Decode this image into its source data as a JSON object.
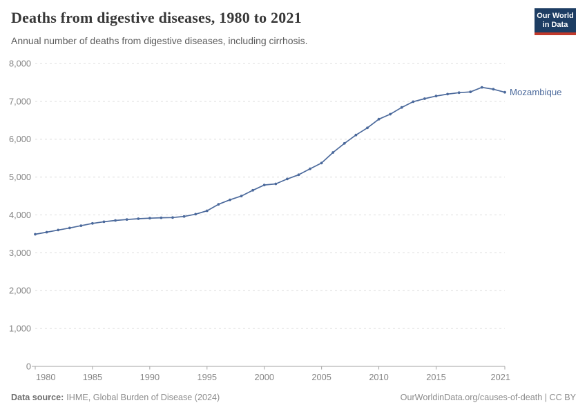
{
  "header": {
    "title": "Deaths from digestive diseases, 1980 to 2021",
    "subtitle": "Annual number of deaths from digestive diseases, including cirrhosis.",
    "logo": {
      "line1": "Our World",
      "line2": "in Data"
    }
  },
  "footer": {
    "source_label": "Data source:",
    "source_text": "IHME, Global Burden of Disease (2024)",
    "right_text": "OurWorldinData.org/causes-of-death | CC BY"
  },
  "colors": {
    "line": "#4C6A9C",
    "logo_navy": "#1D3D63",
    "logo_red": "#C1392B",
    "gridline": "#dcdcdc",
    "axis": "#a3a3a3",
    "tick_text": "#848484"
  },
  "chart_data": {
    "type": "line",
    "title": "Deaths from digestive diseases, 1980 to 2021",
    "subtitle": "Annual number of deaths from digestive diseases, including cirrhosis.",
    "entity_label": "Mozambique",
    "xlabel": "",
    "ylabel": "",
    "xlim": [
      1980,
      2021
    ],
    "ylim": [
      0,
      8000
    ],
    "grid": "horizontal-dashed",
    "legend_position": "end-of-line-label",
    "x": [
      1980,
      1981,
      1982,
      1983,
      1984,
      1985,
      1986,
      1987,
      1988,
      1989,
      1990,
      1991,
      1992,
      1993,
      1994,
      1995,
      1996,
      1997,
      1998,
      1999,
      2000,
      2001,
      2002,
      2003,
      2004,
      2005,
      2006,
      2007,
      2008,
      2009,
      2010,
      2011,
      2012,
      2013,
      2014,
      2015,
      2016,
      2017,
      2018,
      2019,
      2020,
      2021
    ],
    "series": [
      {
        "name": "Mozambique",
        "values": [
          3490,
          3545,
          3600,
          3655,
          3715,
          3775,
          3820,
          3855,
          3880,
          3900,
          3915,
          3925,
          3930,
          3960,
          4020,
          4110,
          4280,
          4400,
          4500,
          4650,
          4790,
          4820,
          4950,
          5060,
          5220,
          5370,
          5650,
          5890,
          6110,
          6300,
          6530,
          6660,
          6840,
          6990,
          7070,
          7140,
          7190,
          7230,
          7250,
          7370,
          7320,
          7240
        ]
      }
    ],
    "xticks": [
      1980,
      1985,
      1990,
      1995,
      2000,
      2005,
      2010,
      2015,
      2021
    ],
    "xtick_labels": [
      "1980",
      "1985",
      "1990",
      "1995",
      "2000",
      "2005",
      "2010",
      "2015",
      "2021"
    ],
    "yticks": [
      0,
      1000,
      2000,
      3000,
      4000,
      5000,
      6000,
      7000,
      8000
    ],
    "ytick_labels": [
      "0",
      "1,000",
      "2,000",
      "3,000",
      "4,000",
      "5,000",
      "6,000",
      "7,000",
      "8,000"
    ]
  }
}
